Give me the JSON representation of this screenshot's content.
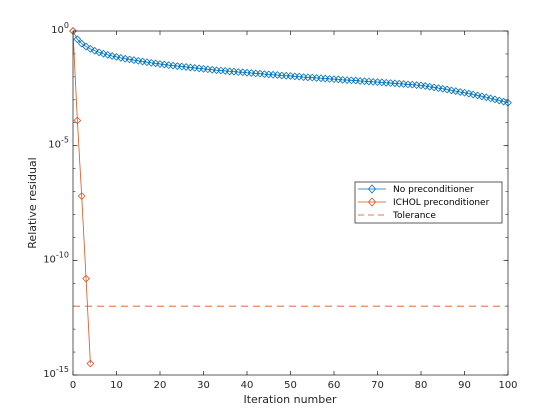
{
  "chart_data": {
    "type": "line",
    "xlabel": "Iteration number",
    "ylabel": "Relative residual",
    "xlim": [
      0,
      100
    ],
    "ylim_log10": [
      -15,
      0
    ],
    "yscale": "log",
    "grid": false,
    "legend_position": "right",
    "x_ticks": [
      0,
      10,
      20,
      30,
      40,
      50,
      60,
      70,
      80,
      90,
      100
    ],
    "x_tick_labels": [
      "0",
      "10",
      "20",
      "30",
      "40",
      "50",
      "60",
      "70",
      "80",
      "90",
      "100"
    ],
    "y_ticks_log10": [
      0,
      -5,
      -10,
      -15
    ],
    "y_tick_base": "10",
    "y_tick_exponents": [
      "0",
      "-5",
      "-10",
      "-15"
    ],
    "series": [
      {
        "name": "No preconditioner",
        "color": "#0072BD",
        "marker": "diamond",
        "x": [
          0,
          1,
          2,
          3,
          4,
          5,
          6,
          7,
          8,
          9,
          10,
          11,
          12,
          13,
          14,
          15,
          16,
          17,
          18,
          19,
          20,
          21,
          22,
          23,
          24,
          25,
          26,
          27,
          28,
          29,
          30,
          31,
          32,
          33,
          34,
          35,
          36,
          37,
          38,
          39,
          40,
          41,
          42,
          43,
          44,
          45,
          46,
          47,
          48,
          49,
          50,
          51,
          52,
          53,
          54,
          55,
          56,
          57,
          58,
          59,
          60,
          61,
          62,
          63,
          64,
          65,
          66,
          67,
          68,
          69,
          70,
          71,
          72,
          73,
          74,
          75,
          76,
          77,
          78,
          79,
          80,
          81,
          82,
          83,
          84,
          85,
          86,
          87,
          88,
          89,
          90,
          91,
          92,
          93,
          94,
          95,
          96,
          97,
          98,
          99,
          100
        ],
        "log10_y": [
          0,
          -0.36,
          -0.55,
          -0.68,
          -0.78,
          -0.86,
          -0.93,
          -0.99,
          -1.04,
          -1.09,
          -1.13,
          -1.17,
          -1.21,
          -1.24,
          -1.27,
          -1.3,
          -1.33,
          -1.36,
          -1.39,
          -1.41,
          -1.44,
          -1.46,
          -1.49,
          -1.51,
          -1.53,
          -1.55,
          -1.57,
          -1.59,
          -1.61,
          -1.63,
          -1.65,
          -1.67,
          -1.69,
          -1.71,
          -1.72,
          -1.74,
          -1.76,
          -1.77,
          -1.79,
          -1.8,
          -1.82,
          -1.83,
          -1.85,
          -1.86,
          -1.88,
          -1.89,
          -1.91,
          -1.92,
          -1.94,
          -1.95,
          -1.96,
          -1.98,
          -1.99,
          -2.01,
          -2.02,
          -2.03,
          -2.05,
          -2.06,
          -2.07,
          -2.09,
          -2.1,
          -2.11,
          -2.13,
          -2.14,
          -2.15,
          -2.16,
          -2.18,
          -2.19,
          -2.2,
          -2.22,
          -2.23,
          -2.24,
          -2.26,
          -2.27,
          -2.28,
          -2.3,
          -2.31,
          -2.33,
          -2.34,
          -2.36,
          -2.37,
          -2.4,
          -2.43,
          -2.46,
          -2.49,
          -2.52,
          -2.55,
          -2.59,
          -2.62,
          -2.66,
          -2.69,
          -2.73,
          -2.77,
          -2.81,
          -2.85,
          -2.89,
          -2.94,
          -2.98,
          -3.03,
          -3.08,
          -3.13
        ]
      },
      {
        "name": "ICHOL preconditioner",
        "color": "#D95319",
        "marker": "diamond",
        "x": [
          0,
          1,
          2,
          3,
          4
        ],
        "log10_y": [
          0,
          -3.9,
          -7.2,
          -10.8,
          -14.5
        ]
      },
      {
        "name": "Tolerance",
        "color": "#D95319",
        "linestyle": "dashed",
        "x": [
          0,
          100
        ],
        "log10_y": [
          -12,
          -12
        ]
      }
    ]
  }
}
